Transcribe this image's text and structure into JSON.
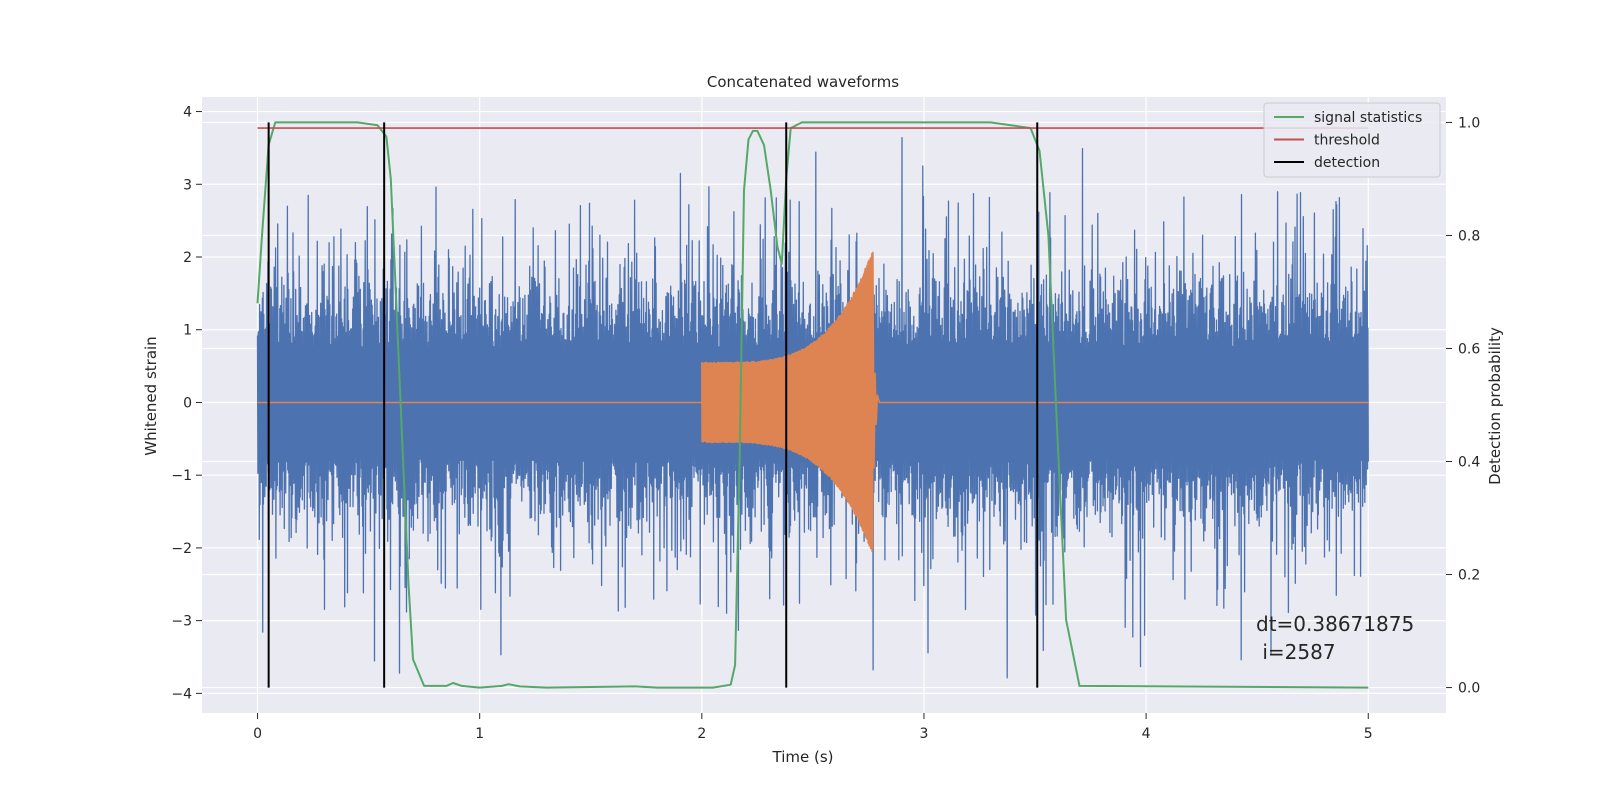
{
  "chart_data": {
    "type": "line",
    "title": "Concatenated waveforms",
    "xlabel": "Time (s)",
    "ylabel": "Whitened strain",
    "y2label": "Detection probability",
    "xlim": [
      -0.25,
      5.35
    ],
    "ylim": [
      -4.27,
      4.2
    ],
    "y2lim": [
      -0.045,
      1.045
    ],
    "xticks": [
      0,
      1,
      2,
      3,
      4,
      5
    ],
    "yticks": [
      -4,
      -3,
      -2,
      -1,
      0,
      1,
      2,
      3,
      4
    ],
    "y2ticks": [
      0.0,
      0.2,
      0.4,
      0.6,
      0.8,
      1.0
    ],
    "y2ticklabels": [
      "0.0",
      "0.2",
      "0.4",
      "0.6",
      "0.8",
      "1.0"
    ],
    "grid": true,
    "legend_position": "top-right",
    "background": "#eaeaf2",
    "series": [
      {
        "key": "strain",
        "axis": "left",
        "color": "#4c72b0",
        "description": "whitened noisy strain",
        "x_range": [
          0,
          5
        ],
        "sample_count": 3200,
        "typical_band": [
          -0.8,
          0.7
        ],
        "peak_max": 3.8,
        "peak_min": -3.9
      },
      {
        "key": "template",
        "axis": "left",
        "color": "#dd8452",
        "description": "injected chirp waveform",
        "x_range": [
          0,
          5
        ],
        "chirp_start": 2.0,
        "chirp_end": 2.77,
        "amplitude_start": 0.55,
        "amplitude_peak": 2.1
      },
      {
        "key": "stat",
        "name": "signal statistics",
        "axis": "right",
        "color": "#55a868",
        "x": [
          0,
          0.02,
          0.05,
          0.08,
          0.12,
          0.2,
          0.45,
          0.54,
          0.58,
          0.6,
          0.62,
          0.65,
          0.68,
          0.7,
          0.75,
          0.85,
          0.88,
          0.92,
          1.0,
          1.1,
          1.13,
          1.18,
          1.3,
          1.7,
          1.8,
          2.05,
          2.13,
          2.15,
          2.17,
          2.19,
          2.21,
          2.23,
          2.25,
          2.28,
          2.31,
          2.34,
          2.36,
          2.38,
          2.4,
          2.45,
          3.3,
          3.48,
          3.52,
          3.56,
          3.6,
          3.64,
          3.7,
          5.0
        ],
        "y": [
          0.68,
          0.8,
          0.96,
          1.0,
          1.0,
          1.0,
          1.0,
          0.995,
          0.975,
          0.9,
          0.72,
          0.45,
          0.18,
          0.05,
          0.003,
          0.003,
          0.008,
          0.003,
          0.0,
          0.003,
          0.006,
          0.002,
          0.0,
          0.002,
          0.0,
          0.0,
          0.005,
          0.04,
          0.4,
          0.88,
          0.97,
          0.985,
          0.985,
          0.96,
          0.88,
          0.78,
          0.75,
          0.9,
          0.99,
          1.0,
          1.0,
          0.99,
          0.95,
          0.8,
          0.45,
          0.12,
          0.003,
          0.0
        ]
      },
      {
        "key": "threshold",
        "name": "threshold",
        "axis": "right",
        "color": "#c44e52",
        "value": 0.99,
        "x_range": [
          0,
          5
        ]
      },
      {
        "key": "detection",
        "name": "detection",
        "axis": "right",
        "color": "#000000",
        "x": [
          0.05,
          0.57,
          2.38,
          3.51
        ],
        "y_range": [
          0.0,
          1.0
        ]
      }
    ],
    "annotation": {
      "text": [
        "dt=0.38671875",
        " i=2587"
      ],
      "x": 4.5,
      "y": -3.0
    }
  }
}
